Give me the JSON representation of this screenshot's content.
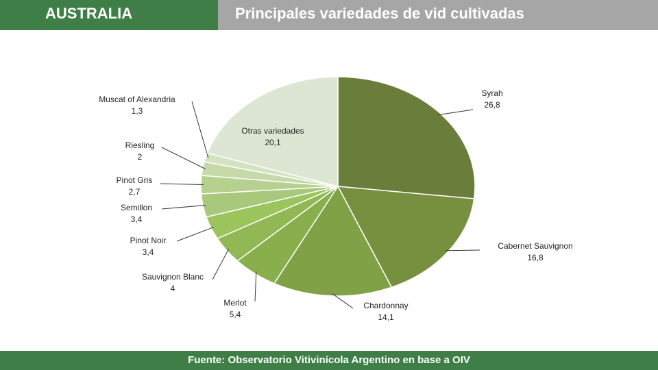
{
  "header": {
    "country": "AUSTRALIA",
    "title": "Principales variedades de vid cultivadas"
  },
  "footer": {
    "source": "Fuente: Observatorio Vitivinícola Argentino en base a OIV"
  },
  "chart_data": {
    "type": "pie",
    "categories": [
      "Syrah",
      "Cabernet Sauvignon",
      "Chardonnay",
      "Merlot",
      "Sauvignon Blanc",
      "Pinot Noir",
      "Semillon",
      "Pinot Gris",
      "Riesling",
      "Muscat of Alexandria",
      "Otras variedades"
    ],
    "values": [
      26.8,
      16.8,
      14.1,
      5.4,
      4,
      3.4,
      3.4,
      2.7,
      2,
      1.3,
      20.1
    ],
    "value_labels": [
      "26,8",
      "16,8",
      "14,1",
      "5,4",
      "4",
      "3,4",
      "3,4",
      "2,7",
      "2",
      "1,3",
      "20,1"
    ],
    "colors": [
      "#6a7d3a",
      "#77903f",
      "#80a146",
      "#89ae4c",
      "#91b854",
      "#9cc45c",
      "#a8c97c",
      "#b6d090",
      "#c5daa8",
      "#d3e3bf",
      "#dde6d2"
    ]
  }
}
